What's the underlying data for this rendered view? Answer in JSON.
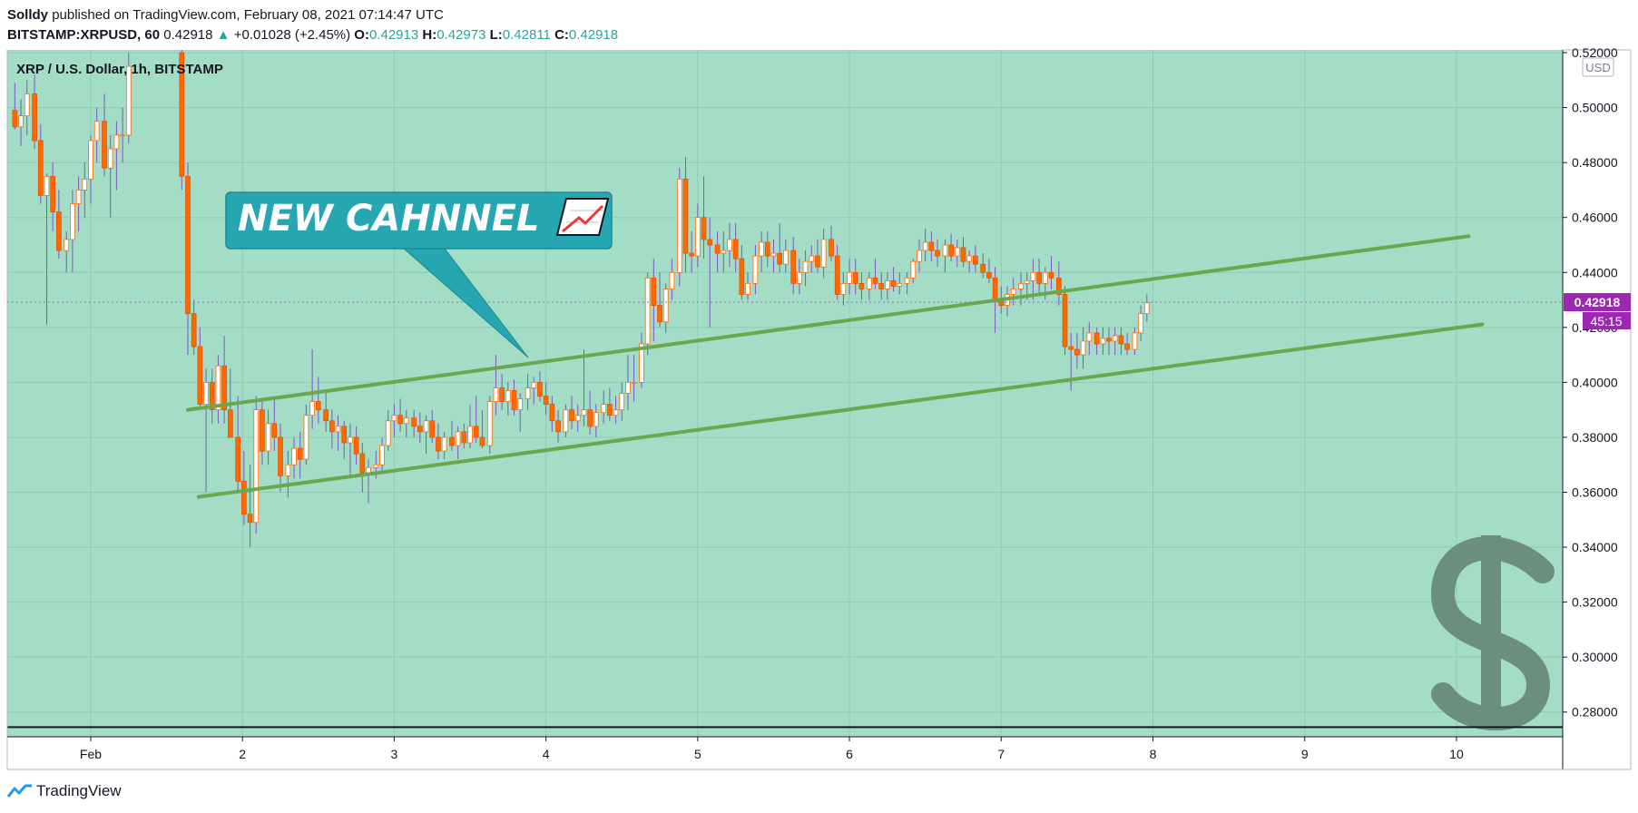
{
  "header": {
    "author": "Solldy",
    "published_text": "published on TradingView.com, February 08, 2021 07:14:47 UTC",
    "symbol": "BITSTAMP:XRPUSD, 60",
    "last": "0.42918",
    "change_arrow": "▲",
    "change": "+0.01028 (+2.45%)",
    "o_label": "O:",
    "o": "0.42913",
    "h_label": "H:",
    "h": "0.42973",
    "l_label": "L:",
    "l": "0.42811",
    "c_label": "C:",
    "c": "0.42918"
  },
  "legend_title": "XRP / U.S. Dollar, 1h, BITSTAMP",
  "currency_label": "USD",
  "price_tag": "0.42918",
  "countdown_tag": "45:15",
  "annotation": {
    "text": "NEW CAHNNEL",
    "icon": "trend-chart-icon"
  },
  "watermark_icon": "dollar-icon",
  "footer": {
    "brand": "TradingView"
  },
  "colors": {
    "background": "#a3ddc6",
    "up_candle": "#ffffff",
    "down_candle": "#ff6a00",
    "wick": "#7e57c2",
    "channel_line": "#6aa84f",
    "callout": "#26a6b0",
    "price_tag": "#9c27b0",
    "watermark": "#6b8e7f"
  },
  "chart_data": {
    "type": "candlestick",
    "title": "XRP / U.S. Dollar, 1h, BITSTAMP",
    "x_ticks": [
      "Feb",
      "2",
      "3",
      "4",
      "5",
      "6",
      "7",
      "8",
      "9",
      "10"
    ],
    "x_tick_days": [
      1,
      2,
      3,
      4,
      5,
      6,
      7,
      8,
      9,
      10
    ],
    "y_ticks": [
      "0.28000",
      "0.30000",
      "0.32000",
      "0.34000",
      "0.36000",
      "0.38000",
      "0.40000",
      "0.42000",
      "0.44000",
      "0.46000",
      "0.48000",
      "0.50000",
      "0.52000"
    ],
    "ylim": [
      0.271,
      0.521
    ],
    "xlim": [
      0.45,
      10.7
    ],
    "last_price": 0.42918,
    "grid": true,
    "channel_lines": [
      {
        "name": "",
        "points": [
          [
            1.64,
            0.39
          ],
          [
            10.08,
            0.4532
          ]
        ]
      },
      {
        "name": "",
        "points": [
          [
            1.71,
            0.3583
          ],
          [
            10.17,
            0.4211
          ]
        ]
      }
    ],
    "horizontal_line": 0.2745,
    "candles": [
      [
        0.5,
        0.499,
        0.509,
        0.492,
        0.493
      ],
      [
        0.54,
        0.493,
        0.503,
        0.486,
        0.497
      ],
      [
        0.58,
        0.497,
        0.51,
        0.49,
        0.505
      ],
      [
        0.63,
        0.505,
        0.512,
        0.485,
        0.488
      ],
      [
        0.67,
        0.488,
        0.494,
        0.465,
        0.468
      ],
      [
        0.71,
        0.468,
        0.476,
        0.421,
        0.475
      ],
      [
        0.75,
        0.475,
        0.48,
        0.455,
        0.462
      ],
      [
        0.79,
        0.462,
        0.47,
        0.445,
        0.448
      ],
      [
        0.84,
        0.448,
        0.455,
        0.44,
        0.452
      ],
      [
        0.88,
        0.452,
        0.47,
        0.44,
        0.465
      ],
      [
        0.92,
        0.465,
        0.475,
        0.455,
        0.47
      ],
      [
        0.96,
        0.47,
        0.48,
        0.46,
        0.474
      ],
      [
        1.0,
        0.474,
        0.49,
        0.465,
        0.488
      ],
      [
        1.04,
        0.488,
        0.5,
        0.48,
        0.495
      ],
      [
        1.09,
        0.495,
        0.505,
        0.475,
        0.478
      ],
      [
        1.13,
        0.478,
        0.49,
        0.46,
        0.485
      ],
      [
        1.17,
        0.485,
        0.495,
        0.47,
        0.49
      ],
      [
        1.21,
        0.49,
        0.5,
        0.48,
        0.49
      ],
      [
        1.25,
        0.49,
        0.52,
        0.487,
        0.515
      ],
      [
        1.6,
        0.52,
        0.525,
        0.47,
        0.475
      ],
      [
        1.64,
        0.475,
        0.48,
        0.41,
        0.425
      ],
      [
        1.68,
        0.425,
        0.43,
        0.41,
        0.413
      ],
      [
        1.72,
        0.413,
        0.42,
        0.39,
        0.392
      ],
      [
        1.76,
        0.392,
        0.405,
        0.36,
        0.4
      ],
      [
        1.8,
        0.4,
        0.405,
        0.385,
        0.39
      ],
      [
        1.84,
        0.39,
        0.41,
        0.385,
        0.406
      ],
      [
        1.88,
        0.406,
        0.417,
        0.385,
        0.39
      ],
      [
        1.92,
        0.39,
        0.405,
        0.38,
        0.38
      ],
      [
        1.97,
        0.38,
        0.395,
        0.36,
        0.364
      ],
      [
        2.01,
        0.364,
        0.375,
        0.348,
        0.352
      ],
      [
        2.05,
        0.352,
        0.37,
        0.34,
        0.349
      ],
      [
        2.09,
        0.349,
        0.395,
        0.345,
        0.39
      ],
      [
        2.13,
        0.39,
        0.394,
        0.37,
        0.375
      ],
      [
        2.17,
        0.375,
        0.39,
        0.37,
        0.385
      ],
      [
        2.21,
        0.385,
        0.395,
        0.375,
        0.38
      ],
      [
        2.25,
        0.38,
        0.385,
        0.36,
        0.366
      ],
      [
        2.3,
        0.366,
        0.375,
        0.358,
        0.37
      ],
      [
        2.34,
        0.37,
        0.38,
        0.365,
        0.376
      ],
      [
        2.38,
        0.376,
        0.382,
        0.365,
        0.372
      ],
      [
        2.42,
        0.372,
        0.392,
        0.37,
        0.388
      ],
      [
        2.46,
        0.388,
        0.412,
        0.383,
        0.393
      ],
      [
        2.5,
        0.393,
        0.402,
        0.385,
        0.39
      ],
      [
        2.55,
        0.39,
        0.397,
        0.382,
        0.386
      ],
      [
        2.59,
        0.386,
        0.39,
        0.376,
        0.382
      ],
      [
        2.63,
        0.382,
        0.388,
        0.375,
        0.384
      ],
      [
        2.67,
        0.384,
        0.386,
        0.372,
        0.378
      ],
      [
        2.71,
        0.378,
        0.385,
        0.365,
        0.38
      ],
      [
        2.75,
        0.38,
        0.384,
        0.37,
        0.374
      ],
      [
        2.79,
        0.374,
        0.378,
        0.36,
        0.367
      ],
      [
        2.83,
        0.367,
        0.372,
        0.356,
        0.369
      ],
      [
        2.88,
        0.369,
        0.375,
        0.365,
        0.37
      ],
      [
        2.92,
        0.37,
        0.38,
        0.368,
        0.377
      ],
      [
        2.96,
        0.377,
        0.39,
        0.375,
        0.386
      ],
      [
        3.0,
        0.386,
        0.392,
        0.38,
        0.388
      ],
      [
        3.04,
        0.388,
        0.394,
        0.382,
        0.385
      ],
      [
        3.08,
        0.385,
        0.39,
        0.38,
        0.387
      ],
      [
        3.13,
        0.387,
        0.39,
        0.38,
        0.384
      ],
      [
        3.17,
        0.384,
        0.389,
        0.378,
        0.382
      ],
      [
        3.21,
        0.382,
        0.388,
        0.374,
        0.386
      ],
      [
        3.25,
        0.386,
        0.39,
        0.378,
        0.38
      ],
      [
        3.29,
        0.38,
        0.385,
        0.372,
        0.375
      ],
      [
        3.33,
        0.375,
        0.382,
        0.372,
        0.38
      ],
      [
        3.38,
        0.38,
        0.386,
        0.375,
        0.377
      ],
      [
        3.42,
        0.377,
        0.384,
        0.372,
        0.382
      ],
      [
        3.46,
        0.382,
        0.385,
        0.376,
        0.378
      ],
      [
        3.5,
        0.378,
        0.392,
        0.376,
        0.384
      ],
      [
        3.54,
        0.384,
        0.395,
        0.378,
        0.38
      ],
      [
        3.58,
        0.38,
        0.39,
        0.376,
        0.377
      ],
      [
        3.63,
        0.377,
        0.395,
        0.374,
        0.393
      ],
      [
        3.67,
        0.393,
        0.41,
        0.388,
        0.398
      ],
      [
        3.71,
        0.398,
        0.403,
        0.39,
        0.393
      ],
      [
        3.75,
        0.393,
        0.4,
        0.388,
        0.397
      ],
      [
        3.79,
        0.397,
        0.401,
        0.388,
        0.39
      ],
      [
        3.83,
        0.39,
        0.396,
        0.382,
        0.394
      ],
      [
        3.88,
        0.394,
        0.403,
        0.39,
        0.398
      ],
      [
        3.92,
        0.398,
        0.402,
        0.392,
        0.4
      ],
      [
        3.96,
        0.4,
        0.404,
        0.393,
        0.395
      ],
      [
        4.0,
        0.395,
        0.4,
        0.388,
        0.392
      ],
      [
        4.04,
        0.392,
        0.395,
        0.382,
        0.386
      ],
      [
        4.08,
        0.386,
        0.39,
        0.378,
        0.382
      ],
      [
        4.13,
        0.382,
        0.392,
        0.38,
        0.39
      ],
      [
        4.17,
        0.39,
        0.395,
        0.383,
        0.386
      ],
      [
        4.21,
        0.386,
        0.392,
        0.382,
        0.388
      ],
      [
        4.25,
        0.388,
        0.412,
        0.384,
        0.39
      ],
      [
        4.29,
        0.39,
        0.397,
        0.381,
        0.384
      ],
      [
        4.33,
        0.384,
        0.392,
        0.38,
        0.389
      ],
      [
        4.38,
        0.389,
        0.397,
        0.385,
        0.392
      ],
      [
        4.42,
        0.392,
        0.398,
        0.386,
        0.388
      ],
      [
        4.46,
        0.388,
        0.395,
        0.385,
        0.39
      ],
      [
        4.5,
        0.39,
        0.4,
        0.386,
        0.396
      ],
      [
        4.54,
        0.396,
        0.41,
        0.39,
        0.4
      ],
      [
        4.58,
        0.4,
        0.41,
        0.393,
        0.4
      ],
      [
        4.63,
        0.4,
        0.418,
        0.398,
        0.414
      ],
      [
        4.67,
        0.414,
        0.44,
        0.41,
        0.438
      ],
      [
        4.71,
        0.438,
        0.445,
        0.415,
        0.428
      ],
      [
        4.75,
        0.428,
        0.44,
        0.42,
        0.422
      ],
      [
        4.79,
        0.422,
        0.436,
        0.418,
        0.434
      ],
      [
        4.83,
        0.434,
        0.445,
        0.43,
        0.44
      ],
      [
        4.88,
        0.44,
        0.478,
        0.435,
        0.474
      ],
      [
        4.92,
        0.474,
        0.482,
        0.44,
        0.447
      ],
      [
        4.96,
        0.447,
        0.455,
        0.44,
        0.446
      ],
      [
        5.0,
        0.446,
        0.465,
        0.442,
        0.46
      ],
      [
        5.04,
        0.46,
        0.475,
        0.445,
        0.452
      ],
      [
        5.08,
        0.452,
        0.46,
        0.42,
        0.45
      ],
      [
        5.13,
        0.45,
        0.455,
        0.44,
        0.447
      ],
      [
        5.17,
        0.447,
        0.455,
        0.44,
        0.448
      ],
      [
        5.21,
        0.448,
        0.458,
        0.442,
        0.452
      ],
      [
        5.25,
        0.452,
        0.458,
        0.44,
        0.445
      ],
      [
        5.29,
        0.445,
        0.45,
        0.43,
        0.432
      ],
      [
        5.33,
        0.432,
        0.44,
        0.43,
        0.436
      ],
      [
        5.38,
        0.436,
        0.45,
        0.432,
        0.446
      ],
      [
        5.42,
        0.446,
        0.455,
        0.44,
        0.451
      ],
      [
        5.46,
        0.451,
        0.455,
        0.442,
        0.446
      ],
      [
        5.5,
        0.446,
        0.452,
        0.44,
        0.447
      ],
      [
        5.54,
        0.447,
        0.458,
        0.44,
        0.443
      ],
      [
        5.58,
        0.443,
        0.452,
        0.44,
        0.448
      ],
      [
        5.63,
        0.448,
        0.453,
        0.432,
        0.436
      ],
      [
        5.67,
        0.436,
        0.445,
        0.432,
        0.44
      ],
      [
        5.71,
        0.44,
        0.448,
        0.435,
        0.444
      ],
      [
        5.75,
        0.444,
        0.45,
        0.44,
        0.446
      ],
      [
        5.79,
        0.446,
        0.452,
        0.44,
        0.442
      ],
      [
        5.83,
        0.442,
        0.456,
        0.438,
        0.452
      ],
      [
        5.88,
        0.452,
        0.457,
        0.444,
        0.446
      ],
      [
        5.92,
        0.446,
        0.45,
        0.43,
        0.432
      ],
      [
        5.96,
        0.432,
        0.44,
        0.428,
        0.436
      ],
      [
        6.0,
        0.436,
        0.445,
        0.432,
        0.44
      ],
      [
        6.04,
        0.44,
        0.445,
        0.432,
        0.436
      ],
      [
        6.08,
        0.436,
        0.44,
        0.43,
        0.434
      ],
      [
        6.13,
        0.434,
        0.44,
        0.43,
        0.438
      ],
      [
        6.17,
        0.438,
        0.445,
        0.434,
        0.436
      ],
      [
        6.21,
        0.436,
        0.44,
        0.43,
        0.434
      ],
      [
        6.25,
        0.434,
        0.44,
        0.43,
        0.437
      ],
      [
        6.29,
        0.437,
        0.442,
        0.433,
        0.435
      ],
      [
        6.33,
        0.435,
        0.44,
        0.432,
        0.436
      ],
      [
        6.38,
        0.436,
        0.44,
        0.432,
        0.438
      ],
      [
        6.42,
        0.438,
        0.445,
        0.436,
        0.444
      ],
      [
        6.46,
        0.444,
        0.452,
        0.44,
        0.448
      ],
      [
        6.5,
        0.448,
        0.456,
        0.444,
        0.451
      ],
      [
        6.54,
        0.451,
        0.455,
        0.444,
        0.448
      ],
      [
        6.58,
        0.448,
        0.452,
        0.442,
        0.446
      ],
      [
        6.63,
        0.446,
        0.452,
        0.44,
        0.45
      ],
      [
        6.67,
        0.45,
        0.454,
        0.444,
        0.446
      ],
      [
        6.71,
        0.446,
        0.452,
        0.442,
        0.449
      ],
      [
        6.75,
        0.449,
        0.453,
        0.442,
        0.444
      ],
      [
        6.79,
        0.444,
        0.448,
        0.44,
        0.446
      ],
      [
        6.83,
        0.446,
        0.45,
        0.44,
        0.443
      ],
      [
        6.88,
        0.443,
        0.447,
        0.438,
        0.44
      ],
      [
        6.92,
        0.44,
        0.445,
        0.436,
        0.438
      ],
      [
        6.96,
        0.438,
        0.442,
        0.418,
        0.43
      ],
      [
        7.0,
        0.43,
        0.435,
        0.425,
        0.428
      ],
      [
        7.04,
        0.428,
        0.435,
        0.424,
        0.432
      ],
      [
        7.08,
        0.432,
        0.438,
        0.428,
        0.434
      ],
      [
        7.13,
        0.434,
        0.44,
        0.428,
        0.436
      ],
      [
        7.17,
        0.436,
        0.44,
        0.43,
        0.437
      ],
      [
        7.21,
        0.437,
        0.445,
        0.43,
        0.44
      ],
      [
        7.25,
        0.44,
        0.445,
        0.432,
        0.436
      ],
      [
        7.29,
        0.436,
        0.442,
        0.43,
        0.44
      ],
      [
        7.33,
        0.44,
        0.446,
        0.434,
        0.438
      ],
      [
        7.38,
        0.438,
        0.444,
        0.428,
        0.432
      ],
      [
        7.42,
        0.432,
        0.435,
        0.41,
        0.413
      ],
      [
        7.46,
        0.413,
        0.418,
        0.397,
        0.412
      ],
      [
        7.5,
        0.412,
        0.418,
        0.405,
        0.41
      ],
      [
        7.54,
        0.41,
        0.42,
        0.405,
        0.415
      ],
      [
        7.58,
        0.415,
        0.422,
        0.41,
        0.418
      ],
      [
        7.63,
        0.418,
        0.42,
        0.41,
        0.414
      ],
      [
        7.67,
        0.414,
        0.42,
        0.41,
        0.416
      ],
      [
        7.71,
        0.416,
        0.42,
        0.41,
        0.415
      ],
      [
        7.75,
        0.415,
        0.42,
        0.41,
        0.417
      ],
      [
        7.79,
        0.417,
        0.42,
        0.41,
        0.414
      ],
      [
        7.83,
        0.414,
        0.418,
        0.41,
        0.412
      ],
      [
        7.88,
        0.412,
        0.42,
        0.41,
        0.418
      ],
      [
        7.92,
        0.418,
        0.428,
        0.415,
        0.425
      ],
      [
        7.96,
        0.425,
        0.432,
        0.422,
        0.429
      ]
    ]
  }
}
